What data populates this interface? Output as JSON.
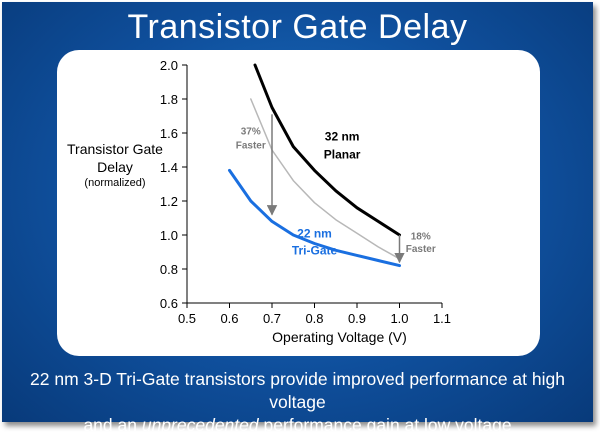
{
  "slide": {
    "title": "Transistor Gate Delay",
    "footer_line1": "22 nm 3-D Tri-Gate transistors provide improved performance at high voltage",
    "footer_line2_pre": "and an ",
    "footer_line2_em": "unprecedented",
    "footer_line2_post": " performance gain at low voltage"
  },
  "chart_data": {
    "type": "line",
    "title": "",
    "xlabel": "Operating Voltage (V)",
    "ylabel": "Transistor Gate Delay",
    "ylabel_sub": "(normalized)",
    "xlim": [
      0.5,
      1.1
    ],
    "ylim": [
      0.6,
      2.0
    ],
    "x_ticks": [
      0.5,
      0.6,
      0.7,
      0.8,
      0.9,
      1.0,
      1.1
    ],
    "x_tick_labels": [
      "0.5",
      "0.6",
      "0.7",
      "0.8",
      "0.9",
      "1.0",
      "1.1"
    ],
    "y_ticks": [
      0.6,
      0.8,
      1.0,
      1.2,
      1.4,
      1.6,
      1.8,
      2.0
    ],
    "y_tick_labels": [
      "0.6",
      "0.8",
      "1.0",
      "1.2",
      "1.4",
      "1.6",
      "1.8",
      "2.0"
    ],
    "grid": false,
    "series": [
      {
        "name": "32 nm Planar",
        "label_line1": "32 nm",
        "label_line2": "Planar",
        "color": "#000000",
        "x": [
          0.66,
          0.7,
          0.75,
          0.8,
          0.85,
          0.9,
          0.95,
          1.0
        ],
        "y": [
          2.0,
          1.75,
          1.52,
          1.38,
          1.26,
          1.16,
          1.08,
          1.0
        ]
      },
      {
        "name": "22 nm Tri-Gate",
        "label_line1": "22 nm",
        "label_line2": "Tri-Gate",
        "color": "#1a6fe0",
        "x": [
          0.6,
          0.65,
          0.7,
          0.75,
          0.8,
          0.85,
          0.9,
          0.95,
          1.0
        ],
        "y": [
          1.38,
          1.2,
          1.08,
          1.0,
          0.95,
          0.91,
          0.88,
          0.85,
          0.82
        ]
      },
      {
        "color": "#b8b8b8",
        "x": [
          0.65,
          0.7,
          0.75,
          0.8,
          0.85,
          0.9,
          0.95,
          1.0
        ],
        "y": [
          1.8,
          1.5,
          1.32,
          1.19,
          1.09,
          1.01,
          0.93,
          0.86
        ]
      }
    ],
    "annotations": [
      {
        "line1": "37%",
        "line2": "Faster",
        "color": "#7a7a7a",
        "x": 0.7,
        "y_from": 1.71,
        "y_to": 1.12
      },
      {
        "line1": "18%",
        "line2": "Faster",
        "color": "#7a7a7a",
        "x": 1.0,
        "y_from": 1.0,
        "y_to": 0.84
      }
    ]
  }
}
